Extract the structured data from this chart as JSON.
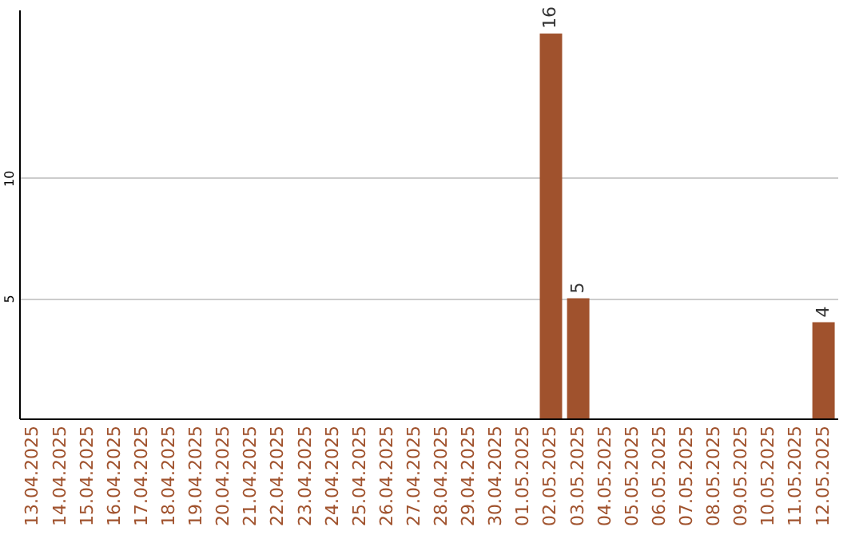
{
  "chart_data": {
    "type": "bar",
    "categories": [
      "13.04.2025",
      "14.04.2025",
      "15.04.2025",
      "16.04.2025",
      "17.04.2025",
      "18.04.2025",
      "19.04.2025",
      "20.04.2025",
      "21.04.2025",
      "22.04.2025",
      "23.04.2025",
      "24.04.2025",
      "25.04.2025",
      "26.04.2025",
      "27.04.2025",
      "28.04.2025",
      "29.04.2025",
      "30.04.2025",
      "01.05.2025",
      "02.05.2025",
      "03.05.2025",
      "04.05.2025",
      "05.05.2025",
      "06.05.2025",
      "07.05.2025",
      "08.05.2025",
      "09.05.2025",
      "10.05.2025",
      "11.05.2025",
      "12.05.2025"
    ],
    "values": [
      0,
      0,
      0,
      0,
      0,
      0,
      0,
      0,
      0,
      0,
      0,
      0,
      0,
      0,
      0,
      0,
      0,
      0,
      0,
      16,
      5,
      0,
      0,
      0,
      0,
      0,
      0,
      0,
      0,
      4
    ],
    "value_labels": [
      null,
      null,
      null,
      null,
      null,
      null,
      null,
      null,
      null,
      null,
      null,
      null,
      null,
      null,
      null,
      null,
      null,
      null,
      null,
      "16",
      "5",
      null,
      null,
      null,
      null,
      null,
      null,
      null,
      null,
      "4"
    ],
    "color": "#a0522d",
    "ylim": [
      0,
      17
    ],
    "yticks": [
      5,
      10
    ],
    "grid": "y"
  }
}
